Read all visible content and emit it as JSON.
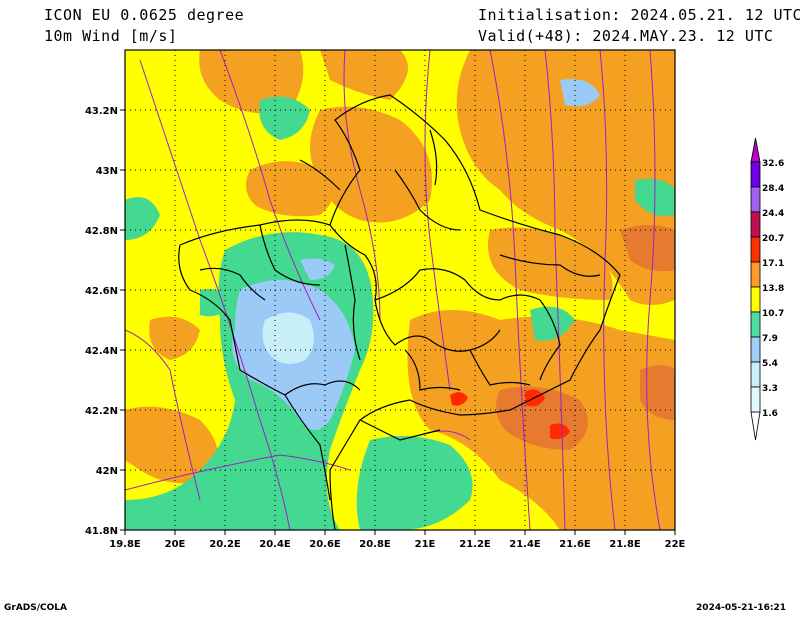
{
  "header": {
    "model_line": "ICON EU 0.0625 degree",
    "field_line": "10m Wind [m/s]",
    "init_line": "Initialisation: 2024.05.21. 12 UTC",
    "valid_line": "Valid(+48): 2024.MAY.23. 12 UTC"
  },
  "map": {
    "lon_ticks": [
      "19.8E",
      "20E",
      "20.2E",
      "20.4E",
      "20.6E",
      "20.8E",
      "21E",
      "21.2E",
      "21.4E",
      "21.6E",
      "21.8E",
      "22E"
    ],
    "lat_ticks": [
      "43.2N",
      "43N",
      "42.8N",
      "42.6N",
      "42.4N",
      "42.2N",
      "42N",
      "41.8N"
    ],
    "lon_range": [
      19.8,
      22.0
    ],
    "lat_range": [
      41.8,
      43.4
    ]
  },
  "colorbar": {
    "labels": [
      "1.6",
      "3.3",
      "5.4",
      "7.9",
      "10.7",
      "13.8",
      "17.1",
      "20.7",
      "24.4",
      "28.4",
      "32.6"
    ],
    "colors": [
      "#c8f0f8",
      "#a0d0f8",
      "#50dca0",
      "#ffff00",
      "#ff9a28",
      "#ff3000",
      "#c01050",
      "#a060f0",
      "#7000e8",
      "#c000c8"
    ]
  },
  "palette": {
    "yellow": "#ffff00",
    "orange": "#f4a020",
    "green": "#44d990",
    "lightblue": "#9ccaf6",
    "paleblue": "#c8eef8",
    "red": "#ff2a00",
    "darkorange": "#e87a30",
    "streamline": "#a020c0",
    "border": "#000000"
  },
  "footer": {
    "credit": "GrADS/COLA",
    "timestamp": "2024-05-21-16:21"
  }
}
